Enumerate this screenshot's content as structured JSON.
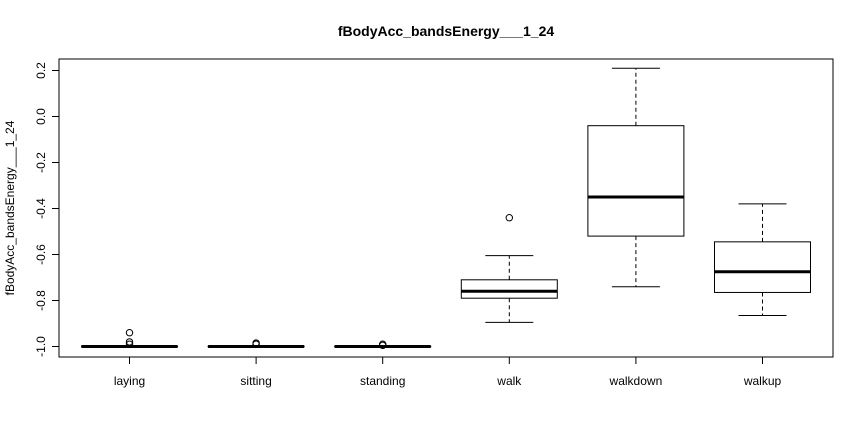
{
  "chart_data": {
    "type": "boxplot",
    "title": "fBodyAcc_bandsEnergy___1_24",
    "xlabel": "",
    "ylabel": "fBodyAcc_bandsEnergy___1_24",
    "ylim": [
      -1.05,
      0.25
    ],
    "yticks": [
      -1.0,
      -0.8,
      -0.6,
      -0.4,
      -0.2,
      0.0,
      0.2
    ],
    "ytick_labels": [
      "-1.0",
      "-0.8",
      "-0.6",
      "-0.4",
      "-0.2",
      "0.0",
      "0.2"
    ],
    "grid": false,
    "legend": "none",
    "categories": [
      "laying",
      "sitting",
      "standing",
      "walk",
      "walkdown",
      "walkup"
    ],
    "boxes": [
      {
        "min": -1.0,
        "q1": -1.0,
        "median": -1.0,
        "q3": -0.999,
        "max": -0.998,
        "outliers": [
          -0.94,
          -0.98,
          -0.99
        ]
      },
      {
        "min": -1.0,
        "q1": -1.0,
        "median": -1.0,
        "q3": -0.999,
        "max": -0.998,
        "outliers": [
          -0.985,
          -0.99
        ]
      },
      {
        "min": -1.0,
        "q1": -1.0,
        "median": -1.0,
        "q3": -0.999,
        "max": -0.998,
        "outliers": [
          -0.99,
          -0.995
        ]
      },
      {
        "min": -0.895,
        "q1": -0.79,
        "median": -0.76,
        "q3": -0.71,
        "max": -0.605,
        "outliers": [
          -0.44
        ]
      },
      {
        "min": -0.74,
        "q1": -0.52,
        "median": -0.35,
        "q3": -0.04,
        "max": 0.21,
        "outliers": []
      },
      {
        "min": -0.865,
        "q1": -0.765,
        "median": -0.675,
        "q3": -0.545,
        "max": -0.38,
        "outliers": []
      }
    ]
  }
}
